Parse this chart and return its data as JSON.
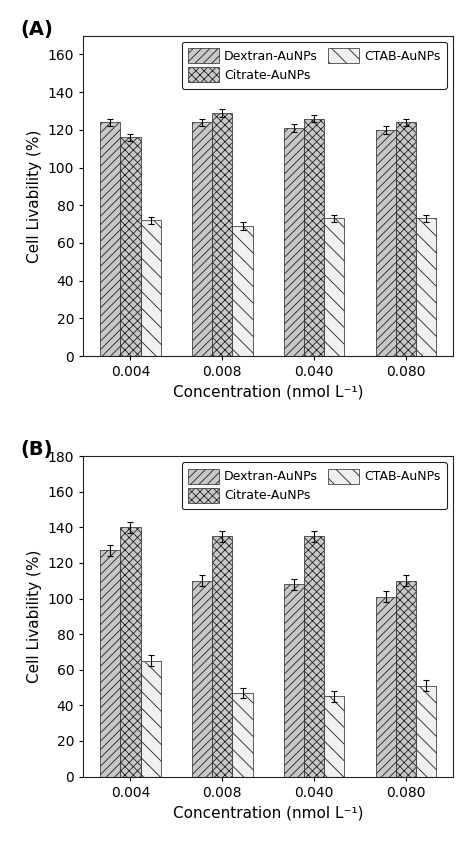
{
  "panel_A": {
    "categories": [
      "0.004",
      "0.008",
      "0.040",
      "0.080"
    ],
    "dextran": [
      124,
      124,
      121,
      120
    ],
    "citrate": [
      116,
      129,
      126,
      124
    ],
    "ctab": [
      72,
      69,
      73,
      73
    ],
    "dextran_err": [
      2,
      2,
      2,
      2
    ],
    "citrate_err": [
      2,
      2,
      2,
      2
    ],
    "ctab_err": [
      2,
      2,
      2,
      2
    ],
    "ylim": [
      0,
      170
    ],
    "yticks": [
      0,
      20,
      40,
      60,
      80,
      100,
      120,
      140,
      160
    ],
    "ylabel": "Cell Livability (%)"
  },
  "panel_B": {
    "categories": [
      "0.004",
      "0.008",
      "0.040",
      "0.080"
    ],
    "dextran": [
      127,
      110,
      108,
      101
    ],
    "citrate": [
      140,
      135,
      135,
      110
    ],
    "ctab": [
      65,
      47,
      45,
      51
    ],
    "dextran_err": [
      3,
      3,
      3,
      3
    ],
    "citrate_err": [
      3,
      3,
      3,
      3
    ],
    "ctab_err": [
      3,
      3,
      3,
      3
    ],
    "ylim": [
      0,
      180
    ],
    "yticks": [
      0,
      20,
      40,
      60,
      80,
      100,
      120,
      140,
      160,
      180
    ],
    "ylabel": "Cell Livability (%)"
  },
  "xlabel": "Concentration (nmol L⁻¹)",
  "legend_labels": [
    "Dextran-AuNPs",
    "Citrate-AuNPs",
    "CTAB-AuNPs"
  ],
  "bar_width": 0.22,
  "edge_color": "#222222",
  "background_color": "#ffffff",
  "face_dextran": "#c8c8c8",
  "face_citrate": "#c8c8c8",
  "face_ctab": "#f0f0f0",
  "hatch_dextran": "////",
  "hatch_citrate": "xxxx",
  "hatch_ctab": "\\\\",
  "panel_labels": [
    "(A)",
    "(B)"
  ],
  "label_fontsize": 14,
  "tick_fontsize": 10,
  "axis_label_fontsize": 11,
  "legend_fontsize": 9
}
